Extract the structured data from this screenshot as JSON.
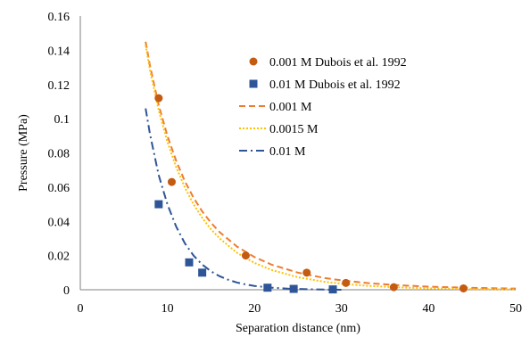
{
  "chart_data": {
    "type": "scatter",
    "xlabel": "Separation distance (nm)",
    "ylabel": "Pressure (MPa)",
    "xlim": [
      0,
      50
    ],
    "ylim": [
      0,
      0.16
    ],
    "x_ticks": [
      0,
      10,
      20,
      30,
      40,
      50
    ],
    "y_ticks": [
      0,
      0.02,
      0.04,
      0.06,
      0.08,
      0.1,
      0.12,
      0.14,
      0.16
    ],
    "x_tick_labels": [
      "0",
      "10",
      "20",
      "30",
      "40",
      "50"
    ],
    "y_tick_labels": [
      "0",
      "0.02",
      "0.04",
      "0.06",
      "0.08",
      "0.1",
      "0.12",
      "0.14",
      "0.16"
    ],
    "grid": false,
    "legend_position": "top-right",
    "series": [
      {
        "name": "0.001 M Dubois et al. 1992",
        "kind": "markers",
        "marker": "circle",
        "color": "#c55a11",
        "points": [
          [
            9.0,
            0.112
          ],
          [
            10.5,
            0.063
          ],
          [
            19.0,
            0.02
          ],
          [
            26.0,
            0.01
          ],
          [
            30.5,
            0.004
          ],
          [
            36.0,
            0.0015
          ],
          [
            44.0,
            0.0008
          ]
        ]
      },
      {
        "name": "0.01 M Dubois et al. 1992",
        "kind": "markers",
        "marker": "square",
        "color": "#2e5597",
        "points": [
          [
            9.0,
            0.05
          ],
          [
            12.5,
            0.016
          ],
          [
            14.0,
            0.01
          ],
          [
            21.5,
            0.0012
          ],
          [
            24.5,
            0.0005
          ],
          [
            29.0,
            0.0002
          ]
        ]
      },
      {
        "name": "0.001 M",
        "kind": "line",
        "dash": "dashed",
        "color": "#ed7d31",
        "points": [
          [
            7.5,
            0.145
          ],
          [
            8,
            0.131
          ],
          [
            9,
            0.108
          ],
          [
            10,
            0.09
          ],
          [
            11,
            0.0755
          ],
          [
            12,
            0.0635
          ],
          [
            13,
            0.0538
          ],
          [
            14,
            0.0458
          ],
          [
            15,
            0.0392
          ],
          [
            16,
            0.0337
          ],
          [
            18,
            0.0252
          ],
          [
            20,
            0.0191
          ],
          [
            22,
            0.0146
          ],
          [
            25,
            0.01
          ],
          [
            28,
            0.0069
          ],
          [
            30,
            0.0055
          ],
          [
            33,
            0.0039
          ],
          [
            36,
            0.0028
          ],
          [
            40,
            0.0018
          ],
          [
            45,
            0.0011
          ],
          [
            50,
            0.0007
          ]
        ]
      },
      {
        "name": "0.0015 M",
        "kind": "line",
        "dash": "dotted",
        "color": "#ffc000",
        "points": [
          [
            7.5,
            0.143
          ],
          [
            8,
            0.1285
          ],
          [
            9,
            0.105
          ],
          [
            10,
            0.0865
          ],
          [
            11,
            0.0718
          ],
          [
            12,
            0.0598
          ],
          [
            13,
            0.05
          ],
          [
            14,
            0.042
          ],
          [
            15,
            0.0354
          ],
          [
            16,
            0.03
          ],
          [
            18,
            0.0216
          ],
          [
            20,
            0.0157
          ],
          [
            22,
            0.0115
          ],
          [
            25,
            0.0073
          ],
          [
            28,
            0.0047
          ],
          [
            30,
            0.0035
          ],
          [
            33,
            0.0023
          ],
          [
            36,
            0.0015
          ],
          [
            40,
            0.0008
          ],
          [
            45,
            0.0004
          ],
          [
            50,
            0.0002
          ]
        ]
      },
      {
        "name": "0.01 M",
        "kind": "line",
        "dash": "dashdot",
        "color": "#2e5597",
        "points": [
          [
            7.5,
            0.106
          ],
          [
            8,
            0.091
          ],
          [
            9,
            0.067
          ],
          [
            10,
            0.05
          ],
          [
            11,
            0.037
          ],
          [
            12,
            0.0272
          ],
          [
            13,
            0.02
          ],
          [
            14,
            0.0147
          ],
          [
            15,
            0.0108
          ],
          [
            16,
            0.0079
          ],
          [
            17,
            0.0058
          ],
          [
            18,
            0.0042
          ],
          [
            19,
            0.0031
          ],
          [
            20,
            0.0022
          ],
          [
            22,
            0.0012
          ],
          [
            24,
            0.0006
          ],
          [
            26,
            0.0003
          ],
          [
            28,
            0.0001
          ],
          [
            30,
            0.0
          ]
        ]
      }
    ]
  }
}
